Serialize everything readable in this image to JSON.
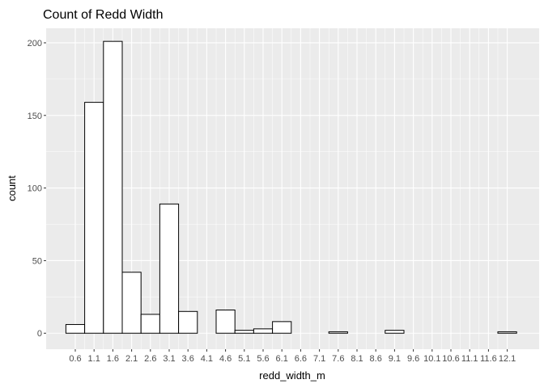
{
  "chart_data": {
    "type": "bar",
    "title": "Count of Redd Width",
    "xlabel": "redd_width_m",
    "ylabel": "count",
    "categories": [
      "0.6",
      "1.1",
      "1.6",
      "2.1",
      "2.6",
      "3.1",
      "3.6",
      "4.1",
      "4.6",
      "5.1",
      "5.6",
      "6.1",
      "6.6",
      "7.1",
      "7.6",
      "8.1",
      "8.6",
      "9.1",
      "9.6",
      "10.1",
      "10.6",
      "11.1",
      "11.6",
      "12.1"
    ],
    "tick_labels": [
      "0.6",
      "1.1",
      "1.6",
      "2.1",
      "2.6",
      "3.1",
      "3.6",
      "4.1",
      "4.6",
      "5.1",
      "5.6",
      "6.1",
      "6.6",
      "7.1",
      "7.6",
      "8.1",
      "8.6",
      "9.1",
      "9.6",
      "10.1",
      "10.6",
      "11.1",
      "11.6",
      "12.1"
    ],
    "values": [
      6,
      159,
      201,
      42,
      13,
      89,
      15,
      0,
      16,
      2,
      3,
      8,
      0,
      0,
      1,
      0,
      0,
      2,
      0,
      0,
      0,
      0,
      0,
      1
    ],
    "ylim": [
      -11,
      210
    ],
    "yticks": [
      0,
      50,
      100,
      150,
      200
    ],
    "grid": true,
    "colors": {
      "panel_background": "#ebebeb",
      "grid_major": "#ffffff",
      "bar_fill": "#ffffff",
      "bar_outline": "#000000"
    }
  }
}
